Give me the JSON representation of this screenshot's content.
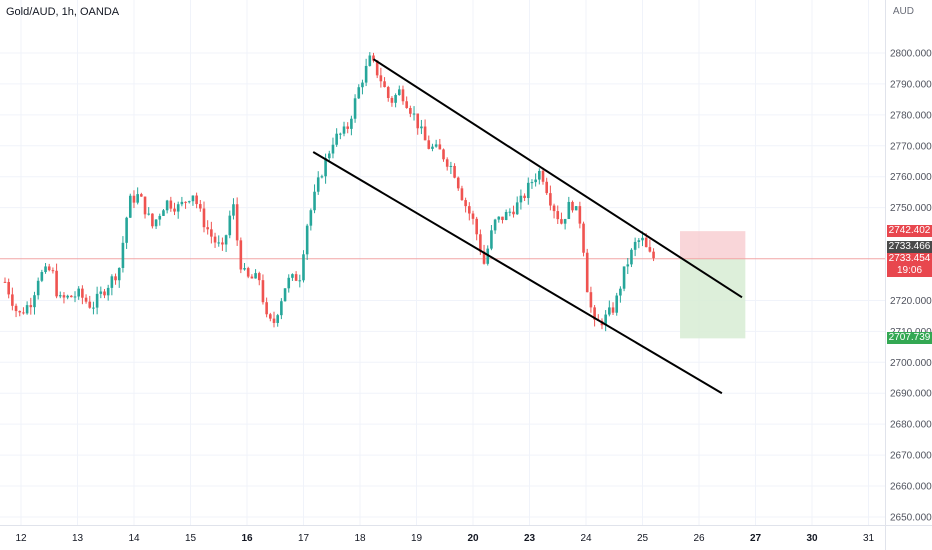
{
  "header": {
    "symbol_line": "Gold/AUD, 1h, OANDA",
    "currency": "AUD"
  },
  "badges": {
    "stop": "2742.402",
    "price": "2733.466",
    "last": "2733.454",
    "countdown": "19:06",
    "target": "2707.739"
  },
  "colors": {
    "up": "#26a69a",
    "down": "#ef5350",
    "stop_zone": "#f7c8cc",
    "target_zone": "#d7ecd4",
    "line": "#000000",
    "stop_badge": "#e8474e",
    "price_badge": "#4a4a4a",
    "target_badge": "#33a853"
  },
  "chart_data": {
    "type": "candlestick",
    "title": "Gold/AUD, 1h, OANDA",
    "y_unit": "AUD",
    "ylim": [
      2646,
      2812
    ],
    "y_ticks": [
      "2800.000",
      "2790.000",
      "2780.000",
      "2770.000",
      "2760.000",
      "2750.000",
      "2720.000",
      "2710.000",
      "2700.000",
      "2690.000",
      "2680.000",
      "2670.000",
      "2660.000",
      "2650.000"
    ],
    "x_ticks": [
      "12",
      "13",
      "14",
      "15",
      "16",
      "17",
      "18",
      "19",
      "20",
      "23",
      "24",
      "25",
      "26",
      "27",
      "30",
      "31"
    ],
    "x_tick_bold": [
      "16",
      "20",
      "23",
      "27",
      "30"
    ],
    "price_path": [
      {
        "t": 12.0,
        "p": 2726
      },
      {
        "t": 12.4,
        "p": 2715
      },
      {
        "t": 12.8,
        "p": 2720
      },
      {
        "t": 13.0,
        "p": 2728
      },
      {
        "t": 13.4,
        "p": 2730
      },
      {
        "t": 13.6,
        "p": 2720
      },
      {
        "t": 14.2,
        "p": 2722
      },
      {
        "t": 14.6,
        "p": 2718
      },
      {
        "t": 15.0,
        "p": 2724
      },
      {
        "t": 15.4,
        "p": 2730
      },
      {
        "t": 15.7,
        "p": 2752
      },
      {
        "t": 16.0,
        "p": 2754
      },
      {
        "t": 16.4,
        "p": 2744
      },
      {
        "t": 16.8,
        "p": 2752
      },
      {
        "t": 17.2,
        "p": 2750
      },
      {
        "t": 17.6,
        "p": 2755
      },
      {
        "t": 17.9,
        "p": 2746
      },
      {
        "t": 18.2,
        "p": 2740
      },
      {
        "t": 18.5,
        "p": 2736
      },
      {
        "t": 18.8,
        "p": 2752
      },
      {
        "t": 19.0,
        "p": 2733
      },
      {
        "t": 19.2,
        "p": 2727
      },
      {
        "t": 19.6,
        "p": 2727
      },
      {
        "t": 19.8,
        "p": 2714
      },
      {
        "t": 20.0,
        "p": 2712
      },
      {
        "t": 20.4,
        "p": 2726
      },
      {
        "t": 20.8,
        "p": 2728
      },
      {
        "t": 21.0,
        "p": 2744
      },
      {
        "t": 21.4,
        "p": 2760
      },
      {
        "t": 21.8,
        "p": 2772
      },
      {
        "t": 22.2,
        "p": 2775
      },
      {
        "t": 22.6,
        "p": 2790
      },
      {
        "t": 22.9,
        "p": 2798
      },
      {
        "t": 23.2,
        "p": 2792
      },
      {
        "t": 23.5,
        "p": 2784
      },
      {
        "t": 23.8,
        "p": 2788
      },
      {
        "t": 24.2,
        "p": 2780
      },
      {
        "t": 24.6,
        "p": 2770
      },
      {
        "t": 25.0,
        "p": 2768
      },
      {
        "t": 25.4,
        "p": 2762
      },
      {
        "t": 25.7,
        "p": 2752
      },
      {
        "t": 26.0,
        "p": 2745
      },
      {
        "t": 26.3,
        "p": 2732
      },
      {
        "t": 26.6,
        "p": 2745
      },
      {
        "t": 27.0,
        "p": 2748
      },
      {
        "t": 27.4,
        "p": 2752
      },
      {
        "t": 27.8,
        "p": 2760
      },
      {
        "t": 28.0,
        "p": 2762
      },
      {
        "t": 28.3,
        "p": 2752
      },
      {
        "t": 28.6,
        "p": 2745
      },
      {
        "t": 28.9,
        "p": 2752
      },
      {
        "t": 29.2,
        "p": 2745
      },
      {
        "t": 29.4,
        "p": 2722
      },
      {
        "t": 29.6,
        "p": 2712
      },
      {
        "t": 29.9,
        "p": 2714
      },
      {
        "t": 30.2,
        "p": 2718
      },
      {
        "t": 30.5,
        "p": 2730
      },
      {
        "t": 30.8,
        "p": 2738
      },
      {
        "t": 31.0,
        "p": 2740
      },
      {
        "t": 31.2,
        "p": 2735
      },
      {
        "t": 31.4,
        "p": 2733.5
      }
    ],
    "channel_upper": {
      "from": {
        "t": 23.0,
        "p": 2798
      },
      "to": {
        "t": 34.0,
        "p": 2721
      }
    },
    "channel_lower": {
      "from": {
        "t": 21.2,
        "p": 2768
      },
      "to": {
        "t": 33.4,
        "p": 2690
      }
    },
    "position": {
      "start_t": 32.15,
      "end_t": 34.1,
      "entry": 2733.454,
      "stop": 2742.402,
      "target": 2707.739
    },
    "current_price": 2733.466
  }
}
